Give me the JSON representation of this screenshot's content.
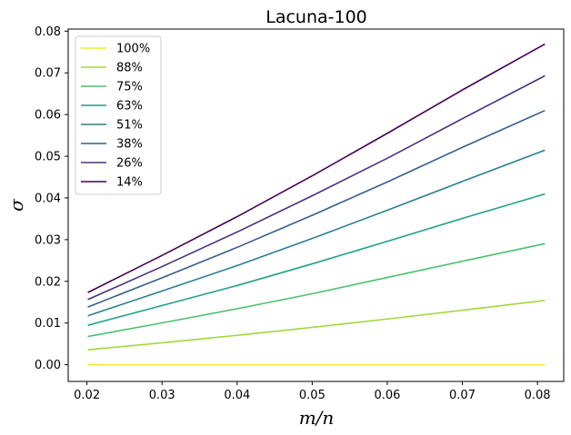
{
  "chart_data": {
    "type": "line",
    "title": "Lacuna-100",
    "xlabel": "m/n",
    "ylabel": "σ",
    "xlim": [
      0.0175,
      0.0835
    ],
    "ylim": [
      -0.004,
      0.0805
    ],
    "xticks": [
      0.02,
      0.03,
      0.04,
      0.05,
      0.06,
      0.07,
      0.08
    ],
    "xtick_labels": [
      "0.02",
      "0.03",
      "0.04",
      "0.05",
      "0.06",
      "0.07",
      "0.08"
    ],
    "yticks": [
      0.0,
      0.01,
      0.02,
      0.03,
      0.04,
      0.05,
      0.06,
      0.07,
      0.08
    ],
    "ytick_labels": [
      "0.00",
      "0.01",
      "0.02",
      "0.03",
      "0.04",
      "0.05",
      "0.06",
      "0.07",
      "0.08"
    ],
    "grid": false,
    "legend_position": "top-left",
    "x": [
      0.0202,
      0.0302,
      0.0402,
      0.0502,
      0.0602,
      0.0702,
      0.0809
    ],
    "series": [
      {
        "name": "100%",
        "color": "#fde725",
        "values": [
          0.0,
          0.0,
          0.0,
          0.0,
          0.0,
          0.0,
          0.0
        ]
      },
      {
        "name": "88%",
        "color": "#a0da39",
        "values": [
          0.0036,
          0.0053,
          0.0071,
          0.009,
          0.011,
          0.0131,
          0.0154
        ]
      },
      {
        "name": "75%",
        "color": "#4ac16d",
        "values": [
          0.0068,
          0.0101,
          0.0135,
          0.0171,
          0.021,
          0.0249,
          0.029
        ]
      },
      {
        "name": "63%",
        "color": "#1fa187",
        "values": [
          0.0095,
          0.0143,
          0.0191,
          0.0243,
          0.0297,
          0.0352,
          0.0409
        ]
      },
      {
        "name": "51%",
        "color": "#277f8e",
        "values": [
          0.0118,
          0.0178,
          0.0239,
          0.0304,
          0.0372,
          0.0441,
          0.0514
        ]
      },
      {
        "name": "38%",
        "color": "#365c8d",
        "values": [
          0.0139,
          0.021,
          0.0283,
          0.036,
          0.044,
          0.0523,
          0.0609
        ]
      },
      {
        "name": "26%",
        "color": "#46327e",
        "values": [
          0.0157,
          0.0237,
          0.032,
          0.0407,
          0.0497,
          0.0592,
          0.0692
        ]
      },
      {
        "name": "14%",
        "color": "#440154",
        "values": [
          0.0174,
          0.0264,
          0.0357,
          0.0455,
          0.0557,
          0.0661,
          0.0768
        ]
      }
    ]
  }
}
